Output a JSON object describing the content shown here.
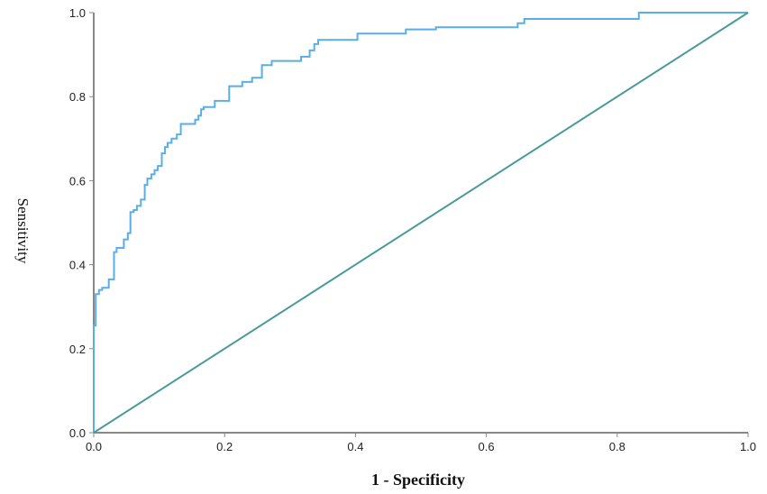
{
  "chart_data": {
    "type": "line",
    "xlabel": "1 - Specificity",
    "ylabel": "Sensitivity",
    "xlim": [
      0.0,
      1.0
    ],
    "ylim": [
      0.0,
      1.0
    ],
    "x_ticks": [
      "0.0",
      "0.2",
      "0.4",
      "0.6",
      "0.8",
      "1.0"
    ],
    "y_ticks": [
      "0.0",
      "0.2",
      "0.4",
      "0.6",
      "0.8",
      "1.0"
    ],
    "grid": false,
    "legend": "none",
    "colors": {
      "roc_curve": "#5aaee8",
      "reference_line": "#4a9a9a",
      "axis": "#888888"
    },
    "series": [
      {
        "x": [
          0.0,
          0.0,
          0.003,
          0.003,
          0.008,
          0.008,
          0.013,
          0.013,
          0.023,
          0.023,
          0.031,
          0.031,
          0.035,
          0.035,
          0.046,
          0.046,
          0.052,
          0.052,
          0.056,
          0.056,
          0.061,
          0.061,
          0.066,
          0.066,
          0.072,
          0.072,
          0.078,
          0.078,
          0.082,
          0.082,
          0.088,
          0.088,
          0.093,
          0.093,
          0.098,
          0.098,
          0.104,
          0.104,
          0.109,
          0.109,
          0.113,
          0.113,
          0.119,
          0.119,
          0.127,
          0.127,
          0.133,
          0.133,
          0.155,
          0.155,
          0.16,
          0.16,
          0.164,
          0.164,
          0.168,
          0.168,
          0.185,
          0.185,
          0.207,
          0.207,
          0.227,
          0.227,
          0.242,
          0.242,
          0.257,
          0.257,
          0.272,
          0.272,
          0.317,
          0.317,
          0.33,
          0.33,
          0.337,
          0.337,
          0.343,
          0.343,
          0.403,
          0.403,
          0.477,
          0.477,
          0.523,
          0.523,
          0.648,
          0.648,
          0.658,
          0.658,
          0.833,
          0.833,
          1.0
        ],
        "y": [
          0.0,
          0.255,
          0.255,
          0.33,
          0.33,
          0.34,
          0.34,
          0.345,
          0.345,
          0.365,
          0.365,
          0.43,
          0.43,
          0.44,
          0.44,
          0.46,
          0.46,
          0.475,
          0.475,
          0.525,
          0.525,
          0.53,
          0.53,
          0.54,
          0.54,
          0.555,
          0.555,
          0.59,
          0.59,
          0.605,
          0.605,
          0.615,
          0.615,
          0.625,
          0.625,
          0.635,
          0.635,
          0.665,
          0.665,
          0.68,
          0.68,
          0.69,
          0.69,
          0.7,
          0.7,
          0.71,
          0.71,
          0.735,
          0.735,
          0.745,
          0.745,
          0.755,
          0.755,
          0.77,
          0.77,
          0.775,
          0.775,
          0.79,
          0.79,
          0.825,
          0.825,
          0.835,
          0.835,
          0.845,
          0.845,
          0.875,
          0.875,
          0.885,
          0.885,
          0.895,
          0.895,
          0.91,
          0.91,
          0.925,
          0.925,
          0.935,
          0.935,
          0.95,
          0.95,
          0.96,
          0.96,
          0.965,
          0.965,
          0.975,
          0.975,
          0.985,
          0.985,
          1.0,
          1.0
        ]
      },
      {
        "x": [
          0.0,
          1.0
        ],
        "y": [
          0.0,
          1.0
        ]
      }
    ]
  }
}
